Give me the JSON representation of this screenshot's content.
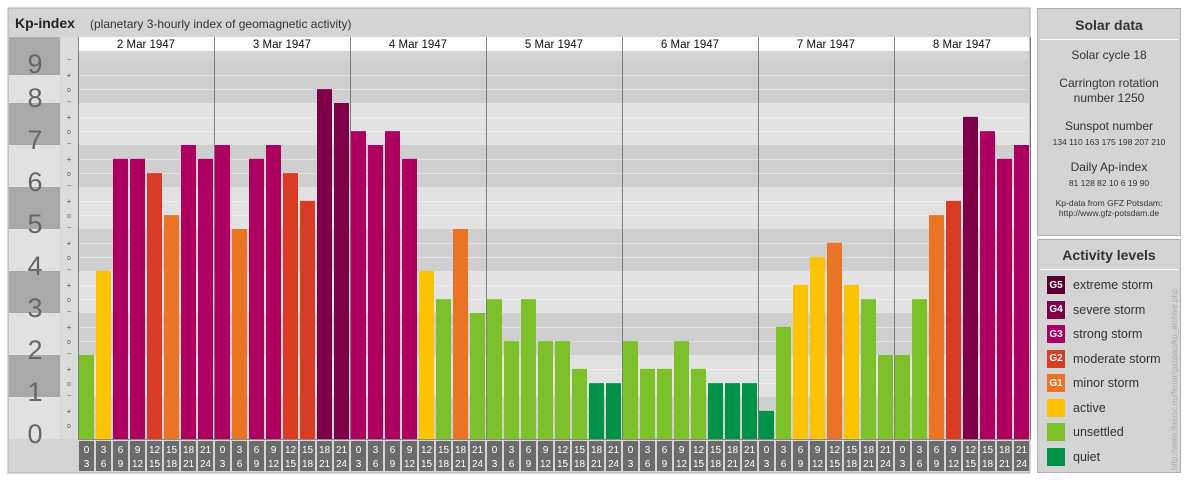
{
  "header": {
    "title": "Kp-index",
    "subtitle": "(planetary 3-hourly index of geomagnetic activity)"
  },
  "chart_data": {
    "type": "bar",
    "title": "Kp-index",
    "subtitle": "(planetary 3-hourly index of geomagnetic activity)",
    "ylim": [
      0,
      9
    ],
    "y_ticks": [
      "0",
      "1",
      "2",
      "3",
      "4",
      "5",
      "6",
      "7",
      "8",
      "9"
    ],
    "sub_ticks": [
      "+",
      "o",
      "−"
    ],
    "days": [
      "2 Mar 1947",
      "3 Mar 1947",
      "4 Mar 1947",
      "5 Mar 1947",
      "6 Mar 1947",
      "7 Mar 1947",
      "8 Mar 1947"
    ],
    "interval_labels": [
      [
        "0",
        "3"
      ],
      [
        "3",
        "6"
      ],
      [
        "6",
        "9"
      ],
      [
        "9",
        "12"
      ],
      [
        "12",
        "15"
      ],
      [
        "15",
        "18"
      ],
      [
        "18",
        "21"
      ],
      [
        "21",
        "24"
      ]
    ],
    "values": [
      [
        2.0,
        4.0,
        6.67,
        6.67,
        6.33,
        5.33,
        7.0,
        6.67
      ],
      [
        7.0,
        5.0,
        6.67,
        7.0,
        6.33,
        5.67,
        8.33,
        8.0
      ],
      [
        7.33,
        7.0,
        7.33,
        6.67,
        4.0,
        3.33,
        5.0,
        3.0
      ],
      [
        3.33,
        2.33,
        3.33,
        2.33,
        2.33,
        1.67,
        1.33,
        1.33
      ],
      [
        2.33,
        1.67,
        1.67,
        2.33,
        1.67,
        1.33,
        1.33,
        1.33
      ],
      [
        0.67,
        2.67,
        3.67,
        4.33,
        4.67,
        3.67,
        3.33,
        2.0
      ],
      [
        2.0,
        3.33,
        5.33,
        5.67,
        7.67,
        7.33,
        6.67,
        7.0
      ]
    ],
    "colors": {
      "quiet": "#009348",
      "unsettled": "#7cc12a",
      "active": "#fcc400",
      "G1": "#ea7324",
      "G2": "#da3b23",
      "G3": "#ad0060",
      "G4": "#7e0049",
      "G5": "#5a002f",
      "bg_dark": "#cfcfcf",
      "bg_light": "#e2e2e2",
      "axis_bg": "#a9a9a9",
      "tick_text": "#ffffff",
      "interval_bg": "#6b6b6b"
    }
  },
  "solar": {
    "title": "Solar data",
    "cycle": "Solar cycle 18",
    "carrington": "Carrington rotation number 1250",
    "sunspot_label": "Sunspot number",
    "sunspot_values": "134 110 163 175 198 207 210",
    "ap_label": "Daily Ap-index",
    "ap_values": "81 128 82 10 6 19 90",
    "source_line1": "Kp-data from GFZ Potsdam:",
    "source_line2": "http://www.gfz-potsdam.de"
  },
  "levels": {
    "title": "Activity levels",
    "items": [
      {
        "code": "G5",
        "label": "extreme storm",
        "color": "#5a002f"
      },
      {
        "code": "G4",
        "label": "severe storm",
        "color": "#7e0049"
      },
      {
        "code": "G3",
        "label": "strong storm",
        "color": "#ad0060"
      },
      {
        "code": "G2",
        "label": "moderate storm",
        "color": "#da3b23"
      },
      {
        "code": "G1",
        "label": "minor storm",
        "color": "#ea7324"
      },
      {
        "code": "",
        "label": "active",
        "color": "#fcc400"
      },
      {
        "code": "",
        "label": "unsettled",
        "color": "#7cc12a"
      },
      {
        "code": "",
        "label": "quiet",
        "color": "#009348"
      }
    ]
  },
  "watermark": "http://www.theusc.eu/ferrar/gazpaci/kp_archive.php"
}
